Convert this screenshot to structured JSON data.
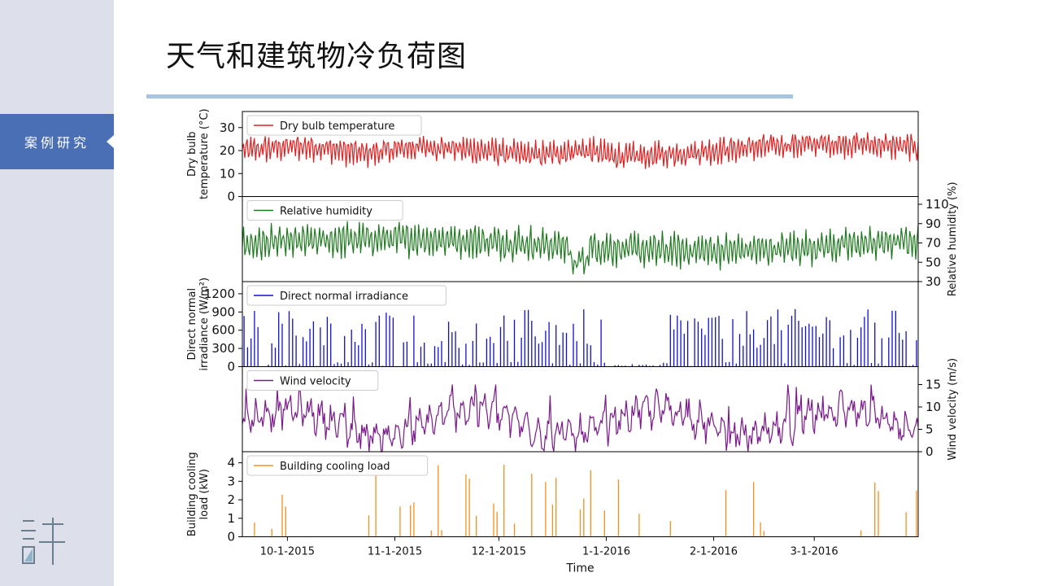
{
  "slide": {
    "title": "天气和建筑物冷负荷图",
    "sidebar_tab": "案例研究",
    "logo_char": "許",
    "colors": {
      "sidebar": "#dde0ea",
      "tab": "#4a6fb5",
      "rule": "#a9c4de"
    }
  },
  "chart_data": {
    "type": "line",
    "xlabel": "Time",
    "x_ticks": [
      "10-1-2015",
      "11-1-2015",
      "12-1-2015",
      "1-1-2016",
      "2-1-2016",
      "3-1-2016"
    ],
    "x_range": [
      "2015-09-18",
      "2016-03-31"
    ],
    "panels": [
      {
        "name": "Dry bulb temperature",
        "legend": "Dry bulb temperature",
        "ylabel": [
          "Dry bulb",
          "temperature (°C)"
        ],
        "axis": "left",
        "color": "#e02020",
        "style": "line",
        "ylim": [
          0,
          37
        ],
        "yticks": [
          0,
          10,
          20,
          30
        ],
        "approx_range": [
          8,
          35
        ]
      },
      {
        "name": "Relative humidity",
        "legend": "Relative humidity",
        "ylabel": [
          "Relative humidity (%)"
        ],
        "axis": "right",
        "color": "#1f7a1f",
        "style": "line",
        "ylim": [
          30,
          118
        ],
        "yticks": [
          30,
          50,
          70,
          90,
          110
        ],
        "approx_range": [
          33,
          95
        ]
      },
      {
        "name": "Direct normal irradiance",
        "legend": "Direct normal irradiance",
        "ylabel": [
          "Direct normal",
          "irradiance (W/m²)"
        ],
        "axis": "left",
        "color": "#1010cc",
        "style": "spikes",
        "ylim": [
          0,
          1400
        ],
        "yticks": [
          0,
          300,
          600,
          900,
          1200
        ],
        "approx_range": [
          0,
          1000
        ]
      },
      {
        "name": "Wind velocity",
        "legend": "Wind velocity",
        "ylabel": [
          "Wind velocity (m/s)"
        ],
        "axis": "right",
        "color": "#7a1a8a",
        "style": "line",
        "ylim": [
          0,
          19
        ],
        "yticks": [
          0,
          5,
          10,
          15
        ],
        "approx_range": [
          0,
          15
        ]
      },
      {
        "name": "Building cooling load",
        "legend": "Building cooling load",
        "ylabel": [
          "Building cooling",
          "load (kW)"
        ],
        "axis": "left",
        "color": "#f0901e",
        "style": "spikes",
        "ylim": [
          0,
          4.6
        ],
        "yticks": [
          0,
          1,
          2,
          3,
          4
        ],
        "approx_range": [
          0,
          4.2
        ]
      }
    ],
    "grid": false,
    "legend_placement": "top-left"
  }
}
